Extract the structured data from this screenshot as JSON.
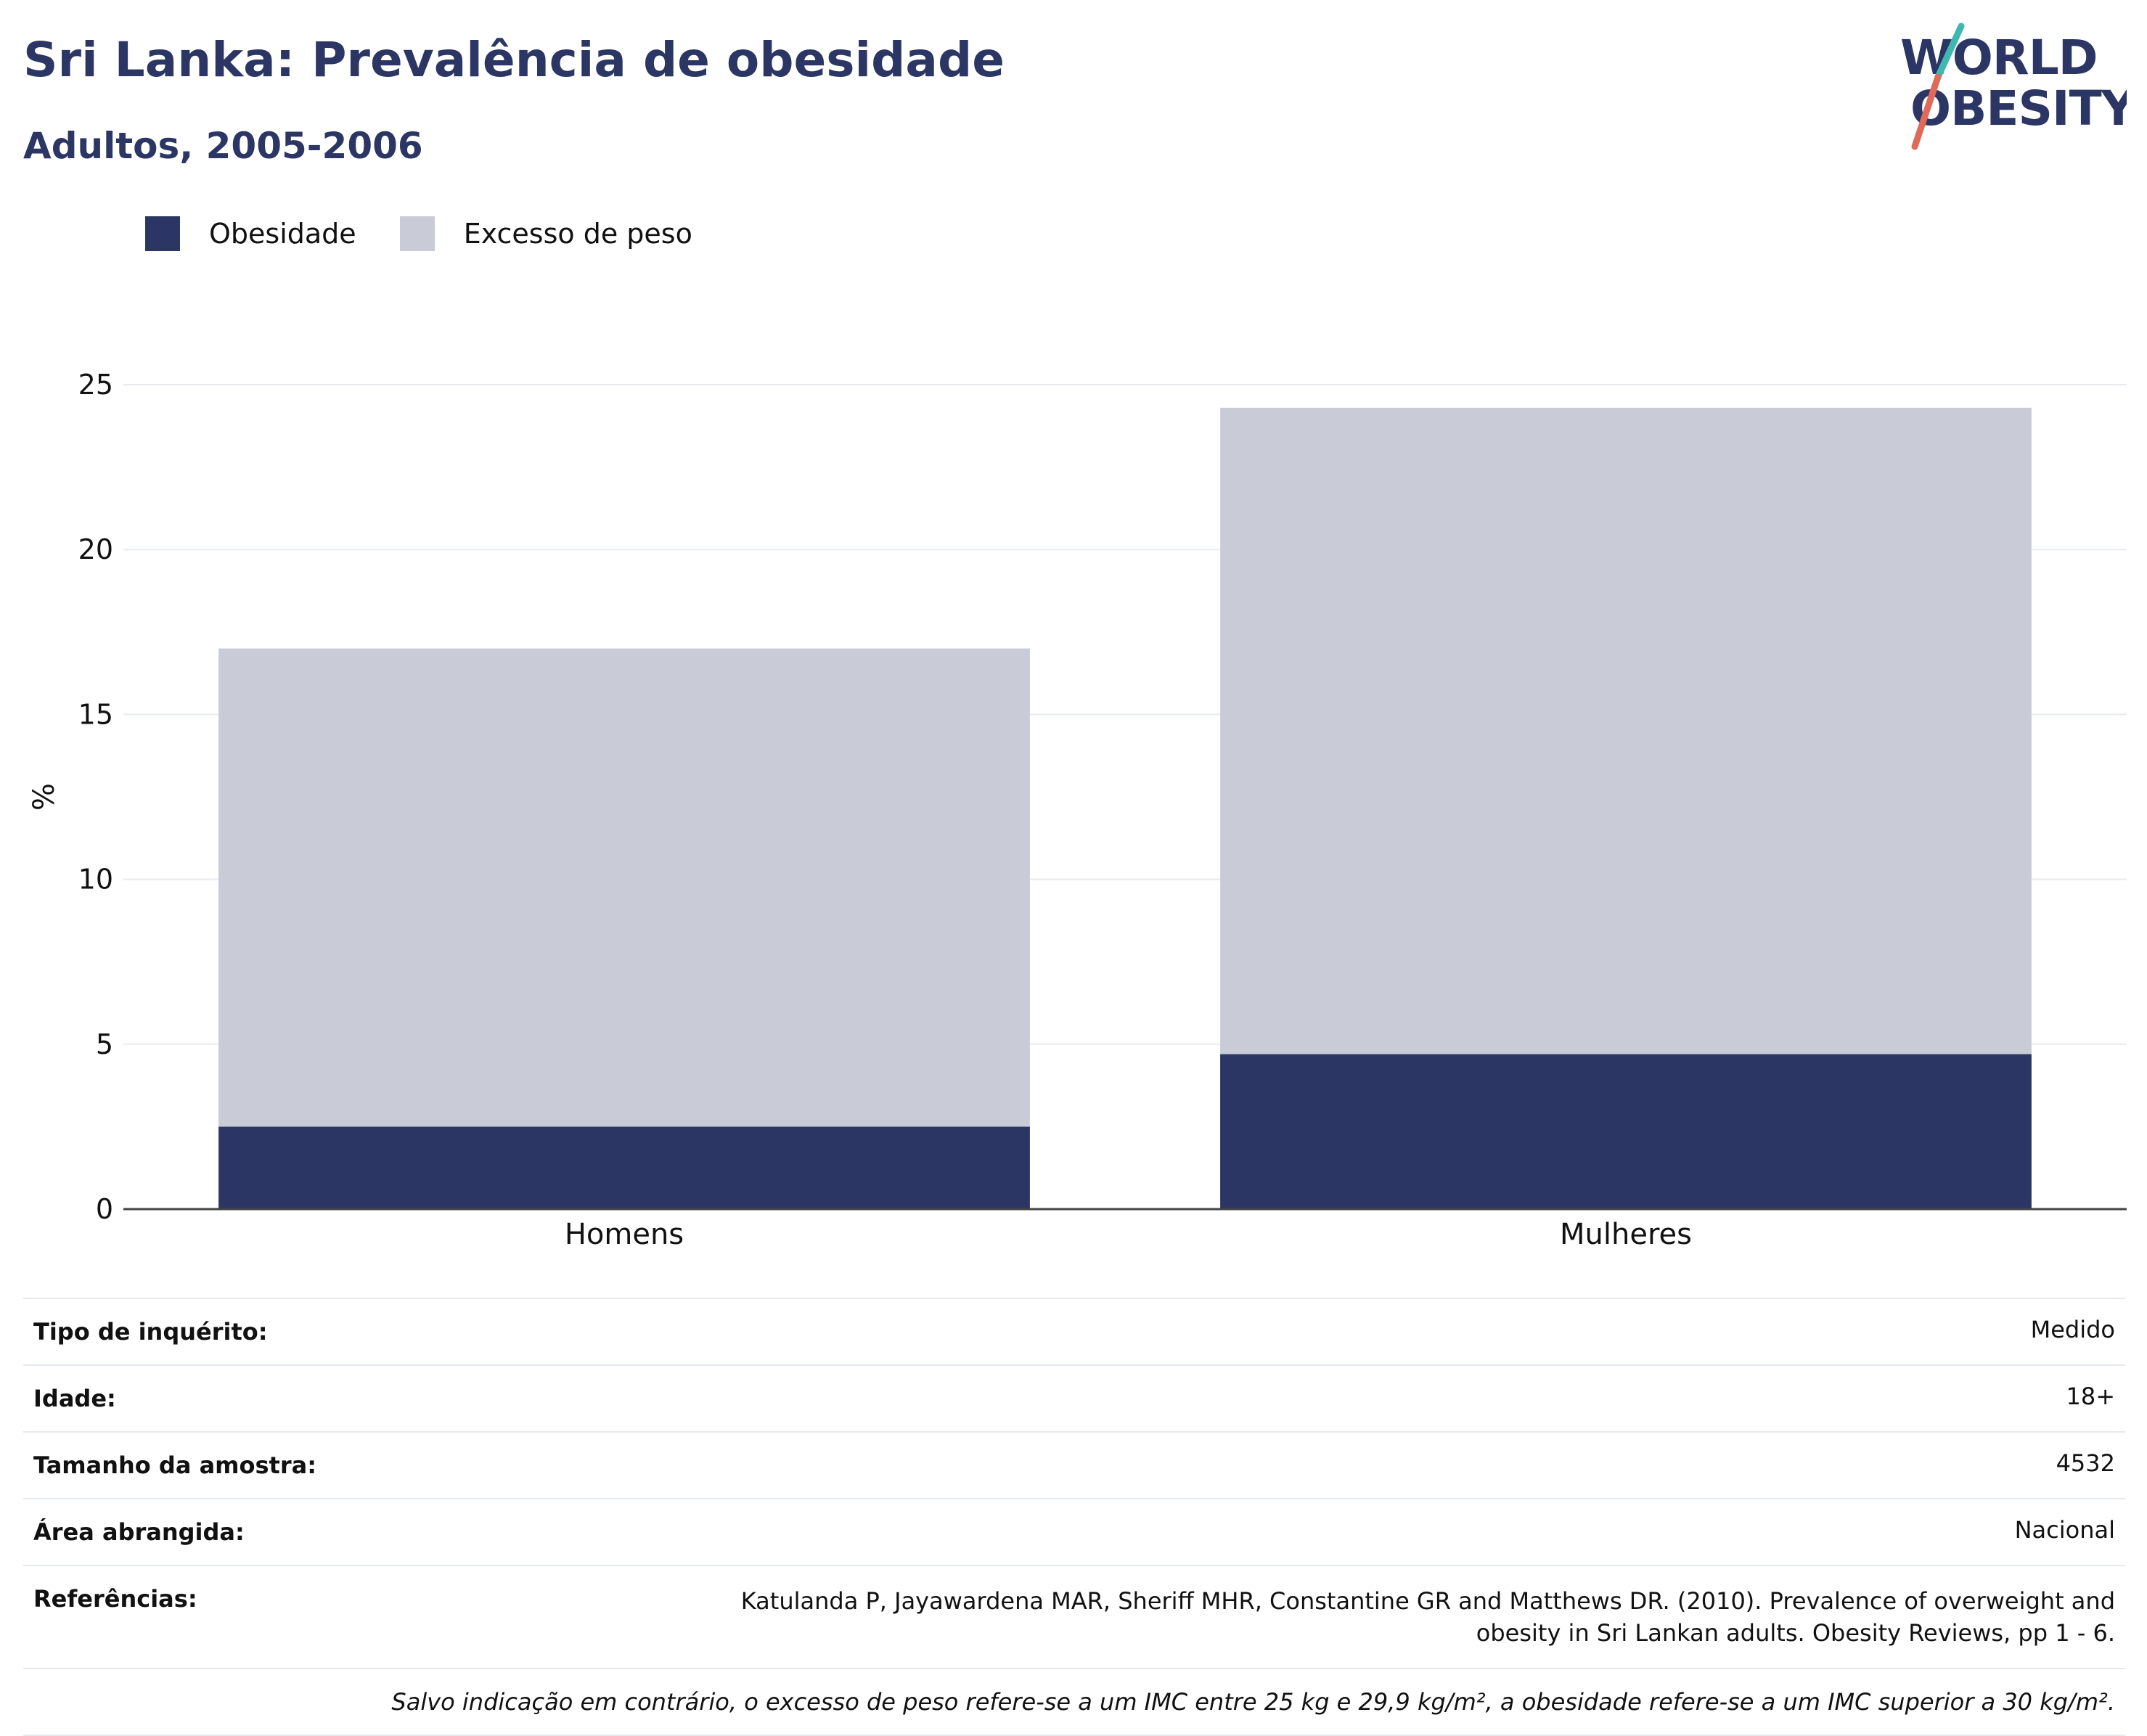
{
  "header": {
    "title": "Sri Lanka: Prevalência de obesidade",
    "subtitle": "Adultos, 2005-2006"
  },
  "logo": {
    "line1": "WORLD",
    "line2": "OBESITY"
  },
  "colors": {
    "obesity": "#2b3664",
    "overweight": "#c9cbd7",
    "text": "#2b3664"
  },
  "chart_data": {
    "type": "bar",
    "stacked": true,
    "categories": [
      "Homens",
      "Mulheres"
    ],
    "series": [
      {
        "name": "Obesidade",
        "values": [
          2.5,
          4.7
        ]
      },
      {
        "name": "Excesso de peso",
        "values": [
          14.5,
          19.6
        ]
      }
    ],
    "ylabel": "%",
    "ylim": [
      0,
      25
    ],
    "yticks": [
      0,
      5,
      10,
      15,
      20,
      25
    ],
    "grid": true,
    "legend": "top-left"
  },
  "info": [
    {
      "label": "Tipo de inquérito:",
      "value": "Medido"
    },
    {
      "label": "Idade:",
      "value": "18+"
    },
    {
      "label": "Tamanho da amostra:",
      "value": "4532"
    },
    {
      "label": "Área abrangida:",
      "value": "Nacional"
    },
    {
      "label": "Referências:",
      "value": "Katulanda P, Jayawardena MAR, Sheriff MHR, Constantine GR and Matthews DR. (2010). Prevalence of overweight and obesity in Sri Lankan adults. Obesity Reviews, pp 1 - 6."
    }
  ],
  "note": "Salvo indicação em contrário, o excesso de peso refere-se a um IMC entre 25 kg e 29,9 kg/m², a obesidade refere-se a um IMC superior a 30 kg/m²."
}
